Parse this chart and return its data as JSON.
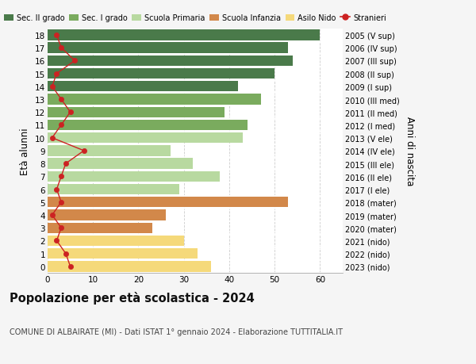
{
  "ages": [
    18,
    17,
    16,
    15,
    14,
    13,
    12,
    11,
    10,
    9,
    8,
    7,
    6,
    5,
    4,
    3,
    2,
    1,
    0
  ],
  "right_labels": [
    "2005 (V sup)",
    "2006 (IV sup)",
    "2007 (III sup)",
    "2008 (II sup)",
    "2009 (I sup)",
    "2010 (III med)",
    "2011 (II med)",
    "2012 (I med)",
    "2013 (V ele)",
    "2014 (IV ele)",
    "2015 (III ele)",
    "2016 (II ele)",
    "2017 (I ele)",
    "2018 (mater)",
    "2019 (mater)",
    "2020 (mater)",
    "2021 (nido)",
    "2022 (nido)",
    "2023 (nido)"
  ],
  "bar_values": [
    60,
    53,
    54,
    50,
    42,
    47,
    39,
    44,
    43,
    27,
    32,
    38,
    29,
    53,
    26,
    23,
    30,
    33,
    36
  ],
  "bar_colors": [
    "#4a7a4a",
    "#4a7a4a",
    "#4a7a4a",
    "#4a7a4a",
    "#4a7a4a",
    "#7aab5e",
    "#7aab5e",
    "#7aab5e",
    "#b8d9a0",
    "#b8d9a0",
    "#b8d9a0",
    "#b8d9a0",
    "#b8d9a0",
    "#d2884a",
    "#d2884a",
    "#d2884a",
    "#f5d97a",
    "#f5d97a",
    "#f5d97a"
  ],
  "stranieri_values": [
    2,
    3,
    6,
    2,
    1,
    3,
    5,
    3,
    1,
    8,
    4,
    3,
    2,
    3,
    1,
    3,
    2,
    4,
    5
  ],
  "legend_labels": [
    "Sec. II grado",
    "Sec. I grado",
    "Scuola Primaria",
    "Scuola Infanzia",
    "Asilo Nido",
    "Stranieri"
  ],
  "legend_colors": [
    "#4a7a4a",
    "#7aab5e",
    "#b8d9a0",
    "#d2884a",
    "#f5d97a",
    "#cc2222"
  ],
  "title": "Popolazione per età scolastica - 2024",
  "subtitle": "COMUNE DI ALBAIRATE (MI) - Dati ISTAT 1° gennaio 2024 - Elaborazione TUTTITALIA.IT",
  "ylabel_left": "Età alunni",
  "ylabel_right": "Anni di nascita",
  "background_color": "#f5f5f5",
  "bar_background": "#ffffff",
  "xlim": [
    0,
    65
  ],
  "xticks": [
    0,
    10,
    20,
    30,
    40,
    50,
    60
  ]
}
